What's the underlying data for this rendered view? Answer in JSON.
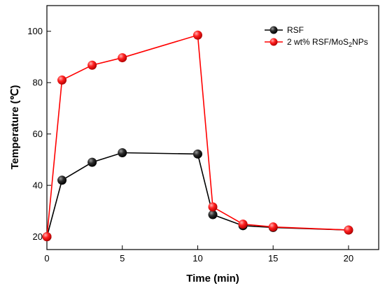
{
  "chart_data": {
    "type": "line",
    "xlabel": "Time (min)",
    "ylabel": "Temperature (℃)",
    "xlim": [
      0,
      22
    ],
    "ylim": [
      15,
      110
    ],
    "xticks": [
      0,
      5,
      10,
      15,
      20
    ],
    "yticks": [
      20,
      40,
      60,
      80,
      100
    ],
    "grid": false,
    "legend_position": "top-right",
    "series": [
      {
        "name": "RSF",
        "color": "#000000",
        "x": [
          0,
          1,
          3,
          5,
          10,
          11,
          13,
          15,
          20
        ],
        "y": [
          20,
          42,
          49,
          52.7,
          52.2,
          28.6,
          24.3,
          23.6,
          22.6
        ]
      },
      {
        "name_parts": [
          "2 wt% RSF/MoS",
          "2",
          "NPs"
        ],
        "color": "#ff0000",
        "x": [
          0,
          1,
          3,
          5,
          10,
          11,
          13,
          15,
          20
        ],
        "y": [
          20,
          81,
          86.8,
          89.7,
          98.5,
          31.6,
          24.9,
          23.8,
          22.6
        ]
      }
    ]
  }
}
